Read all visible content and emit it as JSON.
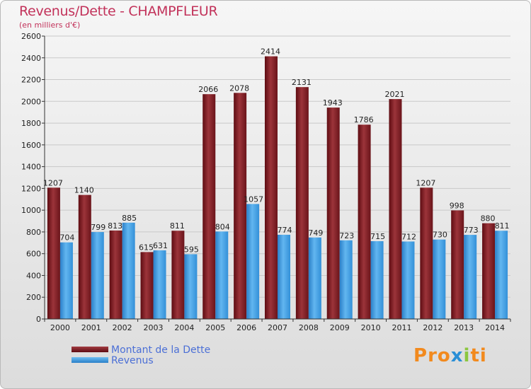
{
  "chart_data": {
    "type": "bar",
    "title": "Revenus/Dette - CHAMPFLEUR",
    "subtitle": "(en milliers d'€)",
    "categories": [
      "2000",
      "2001",
      "2002",
      "2003",
      "2004",
      "2005",
      "2006",
      "2007",
      "2008",
      "2009",
      "2010",
      "2011",
      "2012",
      "2013",
      "2014"
    ],
    "series": [
      {
        "name": "Montant de la Dette",
        "color": "#7a1c22",
        "values": [
          1207,
          1140,
          813,
          615,
          811,
          2066,
          2078,
          2414,
          2131,
          1943,
          1786,
          2021,
          1207,
          998,
          880
        ]
      },
      {
        "name": "Revenus",
        "color": "#3c9be0",
        "values": [
          704,
          799,
          885,
          631,
          595,
          804,
          1057,
          774,
          749,
          723,
          715,
          712,
          730,
          773,
          811
        ]
      }
    ],
    "ylim": [
      0,
      2600
    ],
    "yticks": [
      0,
      200,
      400,
      600,
      800,
      1000,
      1200,
      1400,
      1600,
      1800,
      2000,
      2200,
      2400,
      2600
    ],
    "grid": true,
    "legend": "bottom-left"
  },
  "logo": {
    "letters": [
      "P",
      "r",
      "o",
      "x",
      "i",
      "t",
      "i"
    ],
    "colors": [
      "#f28a1e",
      "#f28a1e",
      "#f28a1e",
      "#2a8fd6",
      "#8cc63f",
      "#f28a1e",
      "#f28a1e"
    ]
  }
}
